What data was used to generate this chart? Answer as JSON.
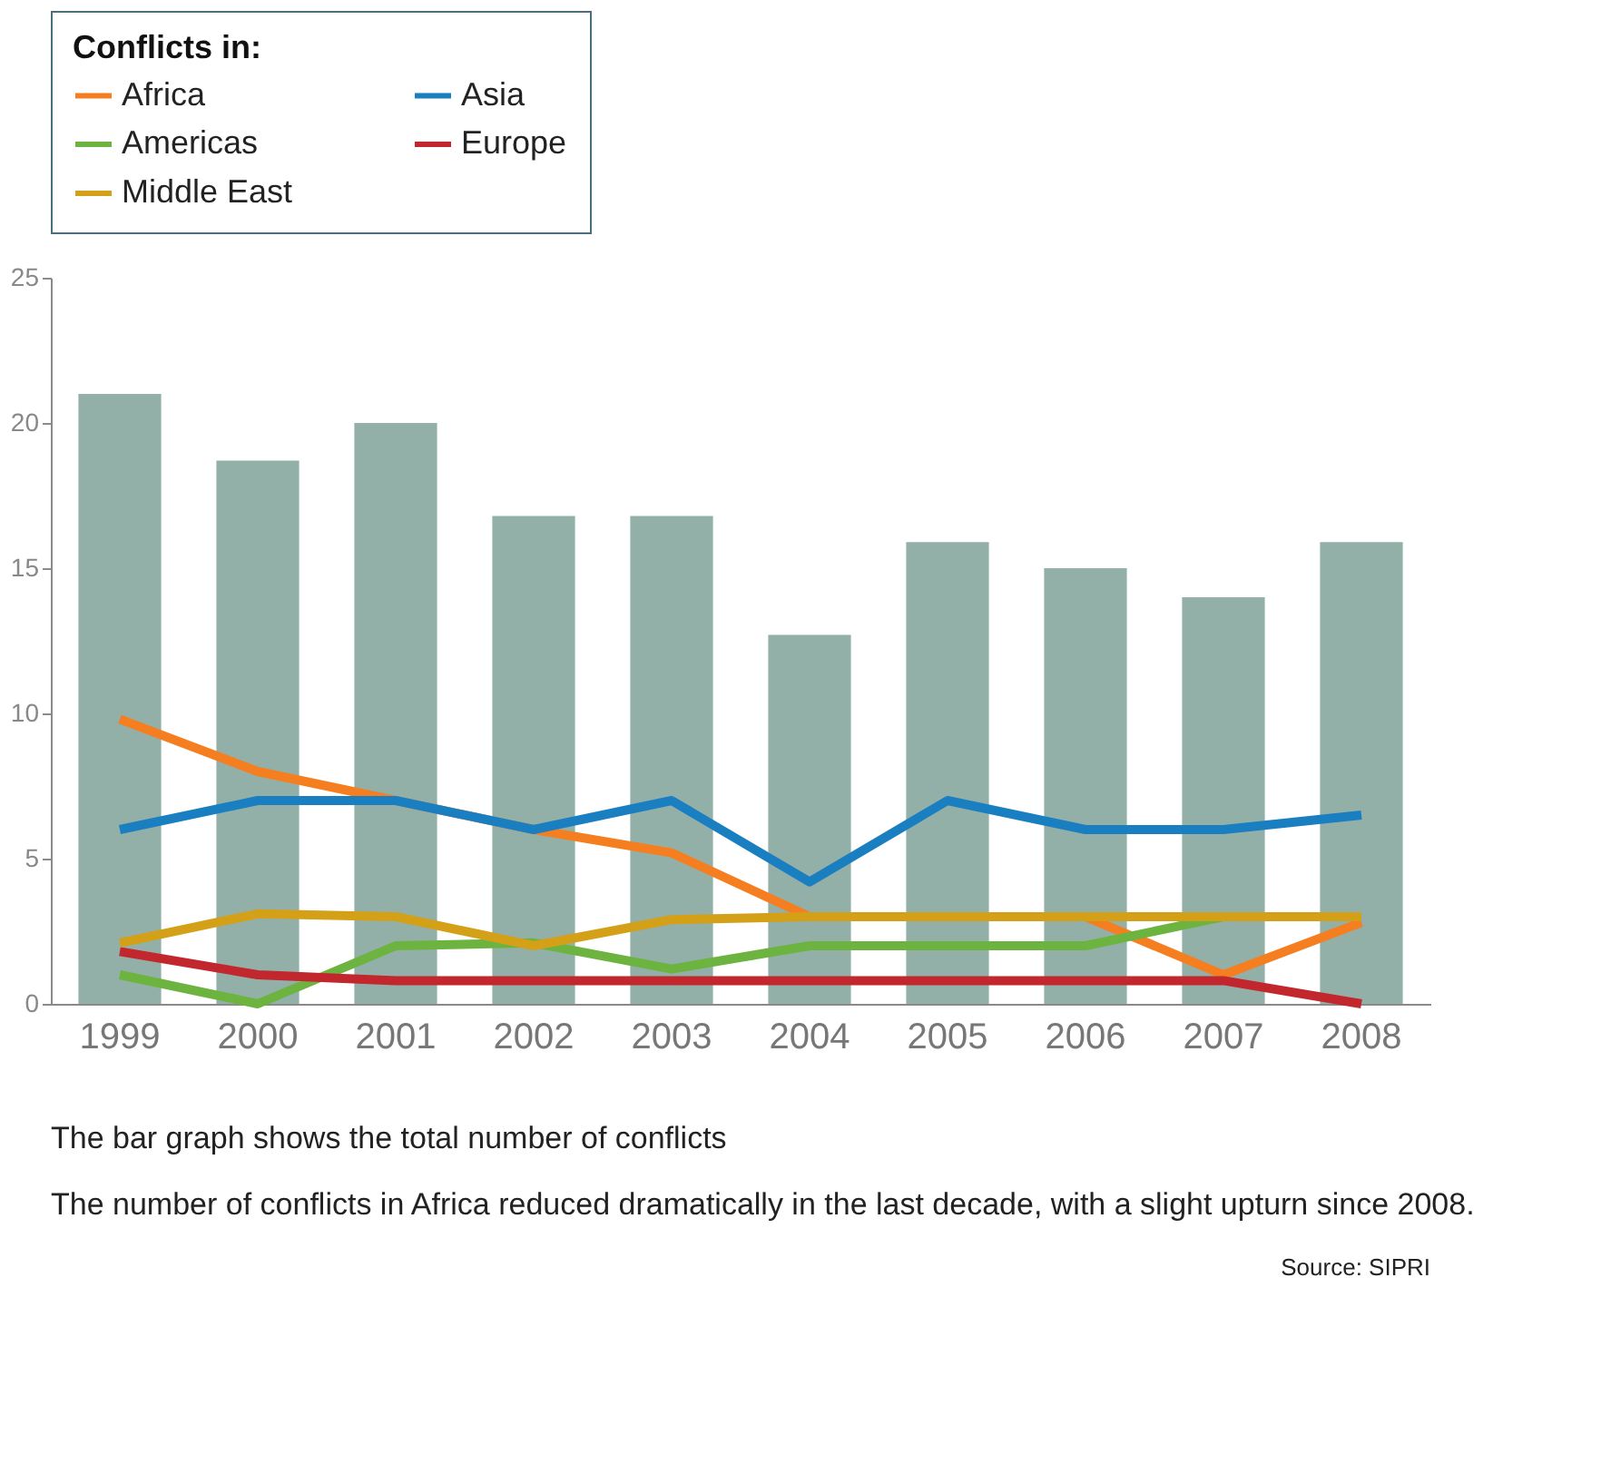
{
  "chart_data": {
    "type": "bar",
    "legend_title": "Conflicts in:",
    "categories": [
      "1999",
      "2000",
      "2001",
      "2002",
      "2003",
      "2004",
      "2005",
      "2006",
      "2007",
      "2008"
    ],
    "values": [
      21,
      18.7,
      20,
      16.8,
      16.8,
      12.7,
      15.9,
      15,
      14,
      15.9
    ],
    "color": "#93b0a8",
    "series": [
      {
        "name": "Africa",
        "type": "line",
        "color": "#f57f20",
        "values": [
          9.8,
          8,
          7,
          6,
          5.2,
          3,
          3,
          3,
          1,
          2.8
        ]
      },
      {
        "name": "Asia",
        "type": "line",
        "color": "#1a7fc1",
        "values": [
          6,
          7,
          7,
          6,
          7,
          4.2,
          7,
          6,
          6,
          6.5
        ]
      },
      {
        "name": "Americas",
        "type": "line",
        "color": "#6cb33f",
        "values": [
          1,
          0,
          2,
          2.1,
          1.2,
          2,
          2,
          2,
          3,
          3
        ]
      },
      {
        "name": "Europe",
        "type": "line",
        "color": "#c1272d",
        "values": [
          1.8,
          1,
          0.8,
          0.8,
          0.8,
          0.8,
          0.8,
          0.8,
          0.8,
          0
        ]
      },
      {
        "name": "Middle East",
        "type": "line",
        "color": "#d4a017",
        "values": [
          2.1,
          3.1,
          3,
          2,
          2.9,
          3,
          3,
          3,
          3,
          3
        ]
      }
    ],
    "ylim": [
      0,
      25
    ],
    "yticks": [
      0,
      5,
      10,
      15,
      20,
      25
    ],
    "grid": false,
    "legend": "top",
    "annotations": [
      "The bar graph shows the total number of conflicts",
      "The number of conflicts in Africa reduced dramatically in the last decade, with a slight upturn since 2008.",
      "Source: SIPRI"
    ]
  }
}
